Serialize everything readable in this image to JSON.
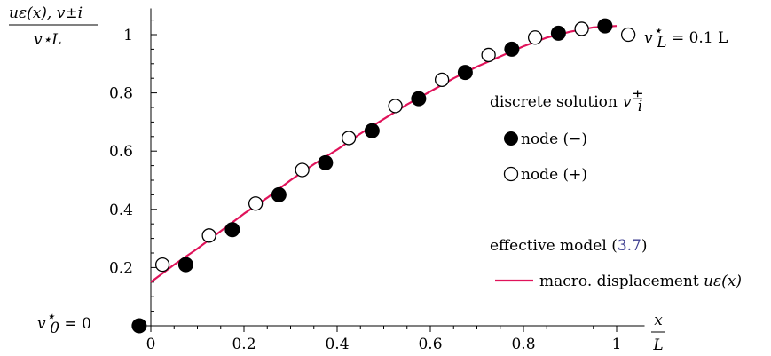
{
  "chart_data": {
    "type": "scatter",
    "title": "",
    "xlabel": {
      "num": "x",
      "den": "L"
    },
    "ylabel": {
      "num": "uε(x), v±i",
      "den": "v⋆L"
    },
    "xlim": [
      -0.02,
      1.06
    ],
    "ylim": [
      -0.02,
      1.09
    ],
    "x_ticks": [
      0,
      0.2,
      0.4,
      0.6,
      0.8,
      1
    ],
    "x_tick_labels": [
      "0",
      "0.2",
      "0.4",
      "0.6",
      "0.8",
      "1"
    ],
    "y_ticks": [
      0.2,
      0.4,
      0.6,
      0.8,
      1
    ],
    "y_tick_labels": [
      "0.2",
      "0.4",
      "0.6",
      "0.8",
      "1"
    ],
    "grid": false,
    "series": [
      {
        "name": "node (−)",
        "marker": "filled-circle",
        "x": [
          -0.025,
          0.075,
          0.175,
          0.275,
          0.375,
          0.475,
          0.575,
          0.675,
          0.775,
          0.875,
          0.975
        ],
        "y": [
          0.0,
          0.21,
          0.33,
          0.45,
          0.56,
          0.67,
          0.78,
          0.87,
          0.95,
          1.005,
          1.03
        ]
      },
      {
        "name": "node (+)",
        "marker": "open-circle",
        "x": [
          0.025,
          0.125,
          0.225,
          0.325,
          0.425,
          0.525,
          0.625,
          0.725,
          0.825,
          0.925,
          1.025
        ],
        "y": [
          0.21,
          0.31,
          0.42,
          0.535,
          0.645,
          0.755,
          0.845,
          0.93,
          0.99,
          1.02,
          1.0
        ]
      },
      {
        "name": "macro. displacement uε(x)",
        "type": "line",
        "color": "#e0135a",
        "x": [
          0,
          0.05,
          0.1,
          0.15,
          0.2,
          0.25,
          0.3,
          0.35,
          0.4,
          0.45,
          0.5,
          0.55,
          0.6,
          0.65,
          0.7,
          0.75,
          0.8,
          0.85,
          0.9,
          0.95,
          1.0
        ],
        "y": [
          0.15,
          0.21,
          0.265,
          0.325,
          0.385,
          0.44,
          0.5,
          0.555,
          0.605,
          0.66,
          0.71,
          0.76,
          0.805,
          0.85,
          0.89,
          0.925,
          0.96,
          0.99,
          1.01,
          1.025,
          1.03
        ]
      }
    ],
    "annotations": {
      "left": {
        "sym": "v",
        "sup": "⋆",
        "sub": "0",
        "rest": " = 0"
      },
      "right": {
        "sym": "v",
        "sup": "⋆",
        "sub": "L",
        "rest": " = 0.1 L"
      }
    },
    "legend": {
      "placement": "right",
      "discrete_title": "discrete solution",
      "discrete_sym": "v",
      "discrete_sup": "±",
      "discrete_sub": "i",
      "node_minus": "node (−)",
      "node_plus": "node (+)",
      "effective_title": "effective model (",
      "effective_ref": "3.7",
      "effective_close": ")",
      "line_label": "macro. displacement ",
      "line_math": "uε(x)"
    },
    "colors": {
      "curve": "#e0135a",
      "axis": "#000000",
      "reference": "#3b3b8f"
    }
  }
}
